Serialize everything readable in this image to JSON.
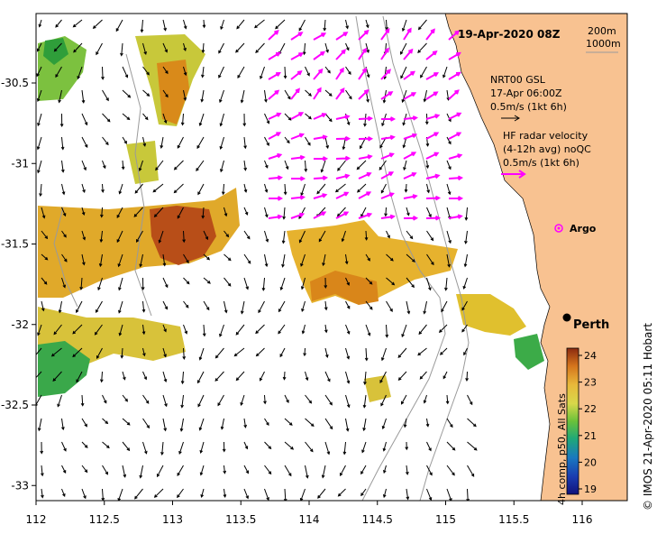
{
  "title": "19-Apr-2020 08Z",
  "contour_legend": {
    "line1": "200m",
    "line2": "1000m"
  },
  "model_legend": {
    "line1": "NRT00 GSL",
    "line2": "17-Apr 06:00Z",
    "line3": "0.5m/s (1kt 6h)"
  },
  "radar_legend": {
    "line1": "HF radar velocity",
    "line2": "(4-12h avg) noQC",
    "line3": "0.5m/s (1kt 6h)"
  },
  "argo_label": "Argo",
  "city_label": "Perth",
  "colorbar": {
    "ticks": [
      "24",
      "23",
      "22",
      "21",
      "20",
      "19"
    ],
    "values": [
      24,
      23,
      22,
      21,
      20,
      19
    ],
    "label": "4h comp, p50, All Sats"
  },
  "credit": "© IMOS 21-Apr-2020 05:11 Hobart",
  "x_axis": {
    "ticks": [
      "112",
      "112.5",
      "113",
      "113.5",
      "114",
      "114.5",
      "115",
      "115.5",
      "116"
    ],
    "values": [
      112,
      112.5,
      113,
      113.5,
      114,
      114.5,
      115,
      115.5,
      116
    ]
  },
  "y_axis": {
    "ticks": [
      "-30.5",
      "-31",
      "-31.5",
      "-32",
      "-32.5",
      "-33"
    ],
    "values": [
      -30.5,
      -31,
      -31.5,
      -32,
      -32.5,
      -33
    ]
  },
  "colors": {
    "land": "#f8c291",
    "radar_arrow": "#ff00ff",
    "model_arrow": "#000000",
    "contour": "#9a9a9a",
    "argo": "#ff00ff"
  }
}
